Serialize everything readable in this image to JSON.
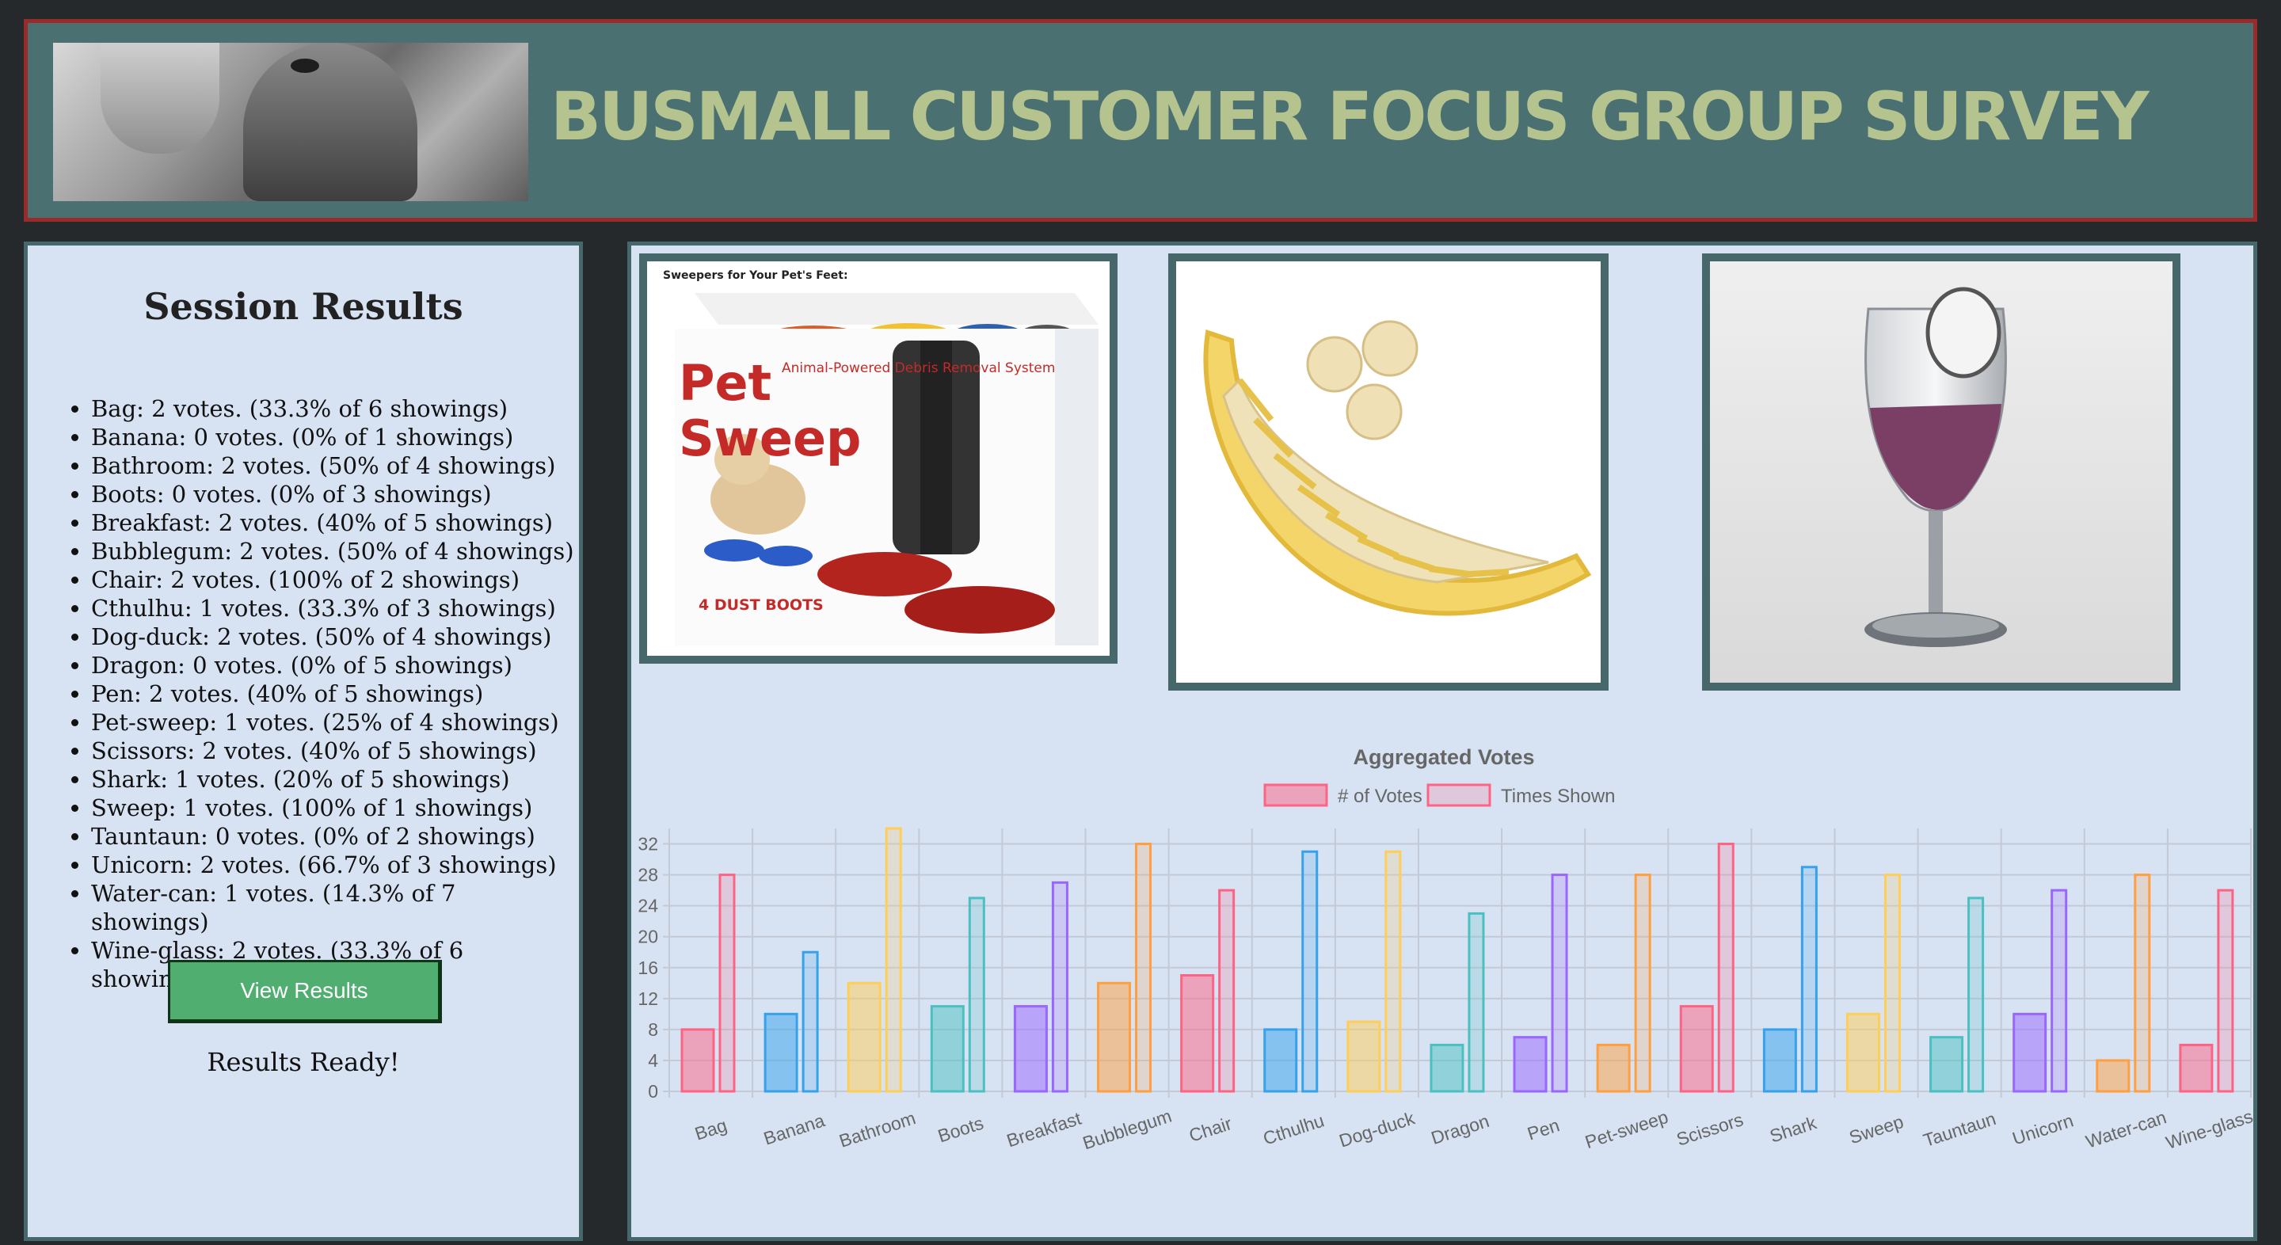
{
  "header": {
    "title": "BUSMALL CUSTOMER FOCUS GROUP SURVEY",
    "logo_icon": "kitten-photo"
  },
  "sidebar": {
    "heading": "Session Results",
    "results": [
      "Bag: 2 votes. (33.3% of 6 showings)",
      "Banana: 0 votes. (0% of 1 showings)",
      "Bathroom: 2 votes. (50% of 4 showings)",
      "Boots: 0 votes. (0% of 3 showings)",
      "Breakfast: 2 votes. (40% of 5 showings)",
      "Bubblegum: 2 votes. (50% of 4 showings)",
      "Chair: 2 votes. (100% of 2 showings)",
      "Cthulhu: 1 votes. (33.3% of 3 showings)",
      "Dog-duck: 2 votes. (50% of 4 showings)",
      "Dragon: 0 votes. (0% of 5 showings)",
      "Pen: 2 votes. (40% of 5 showings)",
      "Pet-sweep: 1 votes. (25% of 4 showings)",
      "Scissors: 2 votes. (40% of 5 showings)",
      "Shark: 1 votes. (20% of 5 showings)",
      "Sweep: 1 votes. (100% of 1 showings)",
      "Tauntaun: 0 votes. (0% of 2 showings)",
      "Unicorn: 2 votes. (66.7% of 3 showings)",
      "Water-can: 1 votes. (14.3% of 7 showings)",
      "Wine-glass: 2 votes. (33.3% of 6 showings)"
    ],
    "button_label": "View Results",
    "status_text": "Results Ready!"
  },
  "products": {
    "one": {
      "icon": "pet-sweep-box-photo",
      "caption": "Sweepers for Your Pet's Feet:",
      "brand_line1": "Pet",
      "brand_line2": "Sweep",
      "tagline": "Animal-Powered Debris Removal System",
      "footer": "4 DUST BOOTS"
    },
    "two": {
      "icon": "banana-slicer-photo"
    },
    "three": {
      "icon": "wine-glass-photo"
    }
  },
  "chart_data": {
    "type": "bar",
    "title": "Aggregated Votes",
    "legend_position": "top",
    "grid": true,
    "ylim": [
      0,
      34
    ],
    "yticks": [
      0,
      4,
      8,
      12,
      16,
      20,
      24,
      28,
      32
    ],
    "categories": [
      "Bag",
      "Banana",
      "Bathroom",
      "Boots",
      "Breakfast",
      "Bubblegum",
      "Chair",
      "Cthulhu",
      "Dog-duck",
      "Dragon",
      "Pen",
      "Pet-sweep",
      "Scissors",
      "Shark",
      "Sweep",
      "Tauntaun",
      "Unicorn",
      "Water-can",
      "Wine-glass"
    ],
    "series": [
      {
        "name": "# of Votes",
        "values": [
          8,
          10,
          14,
          11,
          11,
          14,
          15,
          8,
          9,
          6,
          7,
          6,
          11,
          8,
          10,
          7,
          10,
          4,
          6
        ]
      },
      {
        "name": "Times Shown",
        "values": [
          28,
          18,
          34,
          25,
          27,
          32,
          26,
          31,
          31,
          23,
          28,
          28,
          32,
          29,
          28,
          25,
          26,
          28,
          26
        ]
      }
    ],
    "colors": [
      "#ff6384",
      "#36a2eb",
      "#ffce56",
      "#4bc0c0",
      "#9966ff",
      "#ff9f40"
    ]
  }
}
